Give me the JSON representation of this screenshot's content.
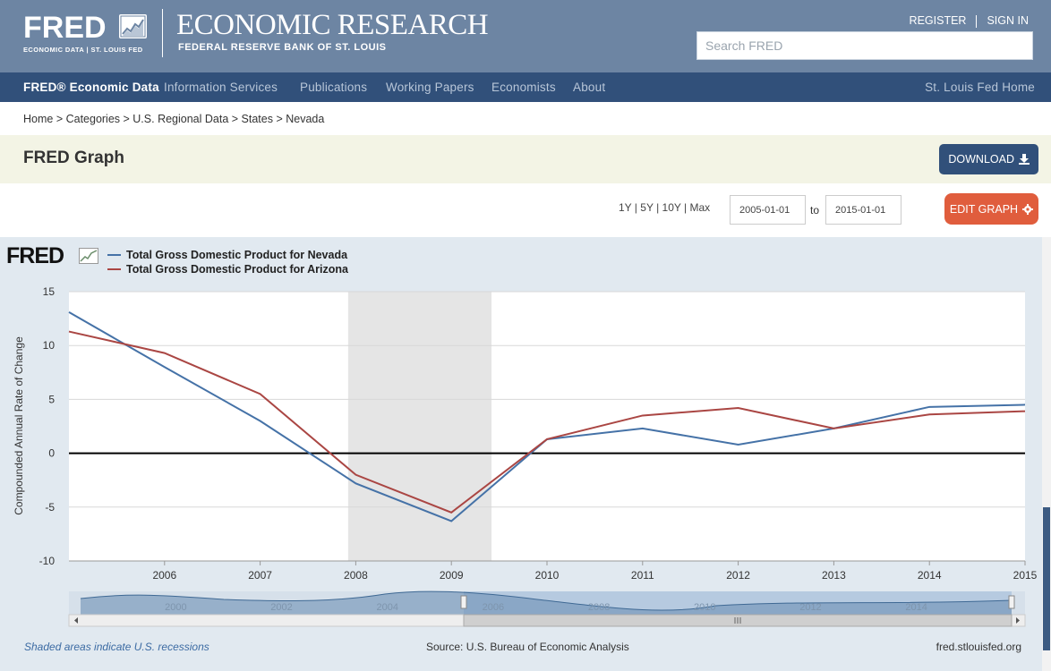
{
  "header": {
    "logo_text": "FRED",
    "logo_subtitle": "ECONOMIC DATA  |  ST. LOUIS FED",
    "section_title": "ECONOMIC RESEARCH",
    "org_name": "FEDERAL RESERVE BANK OF ST. LOUIS",
    "register_label": "REGISTER",
    "signin_label": "SIGN IN",
    "search_placeholder": "Search FRED"
  },
  "nav": {
    "items": [
      {
        "label": "FRED® Economic Data"
      },
      {
        "label": "Information Services"
      },
      {
        "label": "Publications"
      },
      {
        "label": "Working Papers"
      },
      {
        "label": "Economists"
      },
      {
        "label": "About"
      }
    ],
    "right_label": "St. Louis Fed Home"
  },
  "breadcrumb": "Home > Categories > U.S. Regional Data > States > Nevada",
  "page": {
    "title": "FRED Graph",
    "download_label": "DOWNLOAD",
    "range_links": [
      "1Y",
      "5Y",
      "10Y",
      "Max"
    ],
    "date_from": "2005-01-01",
    "to_label": "to",
    "date_to": "2015-01-01",
    "edit_label": "EDIT GRAPH"
  },
  "chart_logo": "FRED",
  "chart_data": {
    "type": "line",
    "ylabel": "Compounded Annual Rate of Change",
    "ylim": [
      -10,
      15
    ],
    "yticks": [
      -10,
      -5,
      0,
      5,
      10,
      15
    ],
    "x": [
      2005,
      2006,
      2007,
      2008,
      2009,
      2010,
      2011,
      2012,
      2013,
      2014,
      2015
    ],
    "xticks": [
      "2006",
      "2007",
      "2008",
      "2009",
      "2010",
      "2011",
      "2012",
      "2013",
      "2014",
      "2015"
    ],
    "recession": [
      2007.92,
      2009.42
    ],
    "series": [
      {
        "name": "Total Gross Domestic Product for Nevada",
        "color": "#4572a7",
        "values": [
          13.1,
          8.0,
          3.0,
          -2.8,
          -6.3,
          1.3,
          2.3,
          0.8,
          2.3,
          4.3,
          4.5
        ]
      },
      {
        "name": "Total Gross Domestic Product for Arizona",
        "color": "#aa4643",
        "values": [
          11.3,
          9.3,
          5.5,
          -2.0,
          -5.5,
          1.3,
          3.5,
          4.2,
          2.3,
          3.6,
          3.9
        ]
      }
    ],
    "navigator_labels": [
      "2000",
      "2002",
      "2004",
      "2006",
      "2008",
      "2010",
      "2012",
      "2014"
    ]
  },
  "footer": {
    "recession_note": "Shaded areas indicate U.S. recessions",
    "source": "Source: U.S. Bureau of Economic Analysis",
    "site": "fred.stlouisfed.org"
  }
}
